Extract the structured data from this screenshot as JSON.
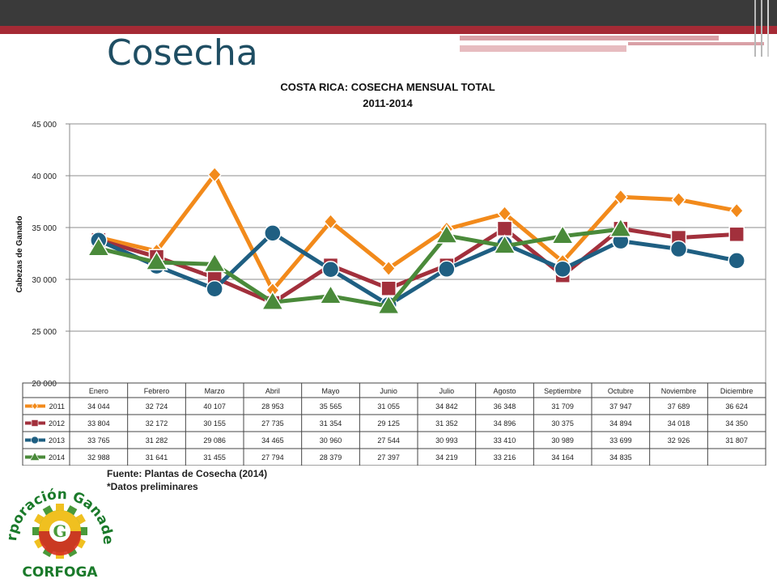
{
  "slide": {
    "title": "Cosecha"
  },
  "chart_data": {
    "type": "line",
    "title": "COSTA RICA: COSECHA MENSUAL TOTAL",
    "subtitle": "2011-2014",
    "ylabel": "Cabezas de Ganado",
    "xlabel": "",
    "ylim": [
      20000,
      45000
    ],
    "yticks": [
      20000,
      25000,
      30000,
      35000,
      40000,
      45000
    ],
    "ytick_labels": [
      "20 000",
      "25 000",
      "30 000",
      "35 000",
      "40 000",
      "45 000"
    ],
    "categories": [
      "Enero",
      "Febrero",
      "Marzo",
      "Abril",
      "Mayo",
      "Junio",
      "Julio",
      "Agosto",
      "Septiembre",
      "Octubre",
      "Noviembre",
      "Diciembre"
    ],
    "grid": true,
    "legend": "data-table",
    "series": [
      {
        "name": "2011",
        "color": "#f28a1b",
        "marker": "diamond",
        "values": [
          34044,
          32724,
          40107,
          28953,
          35565,
          31055,
          34842,
          36348,
          31709,
          37947,
          37689,
          36624
        ],
        "labels": [
          "34 044",
          "32 724",
          "40 107",
          "28 953",
          "35 565",
          "31 055",
          "34 842",
          "36 348",
          "31 709",
          "37 947",
          "37 689",
          "36 624"
        ]
      },
      {
        "name": "2012",
        "color": "#a2303c",
        "marker": "square",
        "values": [
          33804,
          32172,
          30155,
          27735,
          31354,
          29125,
          31352,
          34896,
          30375,
          34894,
          34018,
          34350
        ],
        "labels": [
          "33 804",
          "32 172",
          "30 155",
          "27 735",
          "31 354",
          "29 125",
          "31 352",
          "34 896",
          "30 375",
          "34 894",
          "34 018",
          "34 350"
        ]
      },
      {
        "name": "2013",
        "color": "#1f5f82",
        "marker": "circle",
        "values": [
          33765,
          31282,
          29086,
          34465,
          30960,
          27544,
          30993,
          33410,
          30989,
          33699,
          32926,
          31807
        ],
        "labels": [
          "33 765",
          "31 282",
          "29 086",
          "34 465",
          "30 960",
          "27 544",
          "30 993",
          "33 410",
          "30 989",
          "33 699",
          "32 926",
          "31 807"
        ]
      },
      {
        "name": "2014",
        "color": "#4a8a3a",
        "marker": "triangle",
        "values": [
          32988,
          31641,
          31455,
          27794,
          28379,
          27397,
          34219,
          33216,
          34164,
          34835,
          null,
          null
        ],
        "labels": [
          "32 988",
          "31 641",
          "31 455",
          "27 794",
          "28 379",
          "27 397",
          "34 219",
          "33 216",
          "34 164",
          "34 835",
          "",
          ""
        ]
      }
    ]
  },
  "footer": {
    "source": "Fuente: Plantas de Cosecha (2014)",
    "note": "*Datos preliminares"
  },
  "logo": {
    "arc_text": "Corporación Ganadera",
    "bottom_text": "CORFOGA",
    "colors": {
      "green": "#4a9a3a",
      "yellow": "#f0c020",
      "red": "#d83020"
    }
  }
}
